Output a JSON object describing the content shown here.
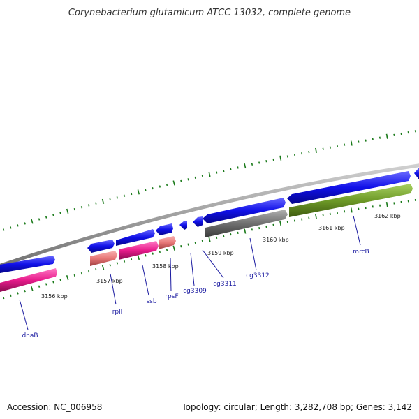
{
  "title": "Corynebacterium glutamicum ATCC 13032, complete genome",
  "footer": {
    "accession": "Accession: NC_006958",
    "stats": "Topology: circular; Length: 3,282,708 bp; Genes: 3,142"
  },
  "kbp_labels": [
    "3156 kbp",
    "3157 kbp",
    "3158 kbp",
    "3159 kbp",
    "3160 kbp",
    "3161 kbp",
    "3162 kbp"
  ],
  "gene_labels": [
    "dnaB",
    "rplI",
    "ssb",
    "rpsF",
    "cg3309",
    "cg3311",
    "cg3312",
    "mrcB"
  ],
  "colors": {
    "cds": "#1010e8",
    "rna_pink": "#e81c8c",
    "rna_light": "#e87878",
    "gray_feature": "#707070",
    "green_feature": "#6e9a28",
    "backbone": "#a0a0a0",
    "tick": "#1a7a1a",
    "label": "#1a1aa0"
  }
}
